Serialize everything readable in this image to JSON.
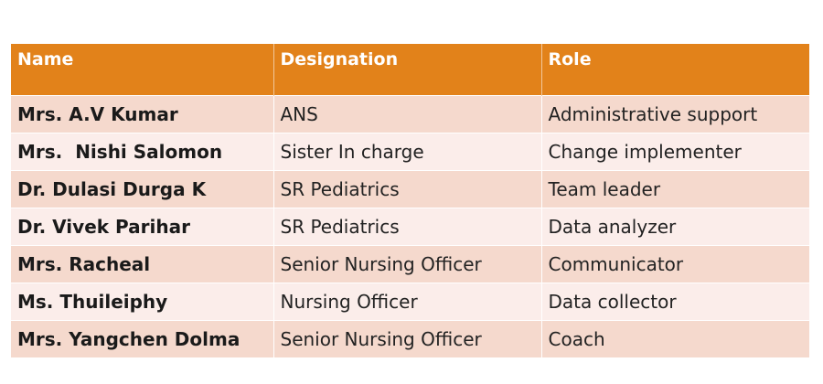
{
  "table": {
    "headers": {
      "name": "Name",
      "designation": "Designation",
      "role": "Role"
    },
    "rows": [
      {
        "name": "Mrs. A.V Kumar",
        "designation": "ANS",
        "role": "Administrative support"
      },
      {
        "name": "Mrs.  Nishi Salomon",
        "designation": "Sister In charge",
        "role": "Change implementer"
      },
      {
        "name": "Dr. Dulasi Durga K",
        "designation": "SR Pediatrics",
        "role": "Team leader"
      },
      {
        "name": "Dr. Vivek Parihar",
        "designation": "SR Pediatrics",
        "role": "Data analyzer"
      },
      {
        "name": "Mrs. Racheal",
        "designation": "Senior Nursing Officer",
        "role": "Communicator"
      },
      {
        "name": "Ms. Thuileiphy",
        "designation": "Nursing Officer",
        "role": "Data collector"
      },
      {
        "name": "Mrs. Yangchen Dolma",
        "designation": "Senior Nursing Officer",
        "role": "Coach"
      }
    ]
  },
  "colors": {
    "header_bg": "#e2821a",
    "row_odd_bg": "#f5d9cd",
    "row_even_bg": "#fbedea"
  }
}
